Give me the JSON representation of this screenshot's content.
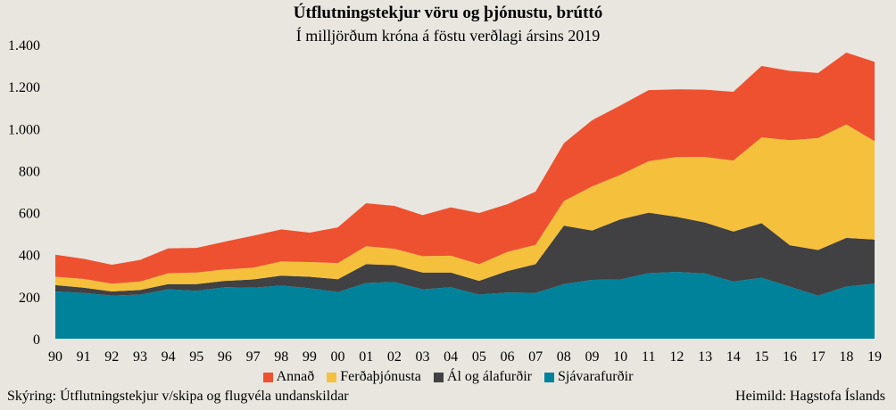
{
  "chart_data": {
    "type": "area",
    "stacked": true,
    "title": "Útflutningstekjur vöru og þjónustu, brúttó",
    "subtitle": "Í milljörðum króna á föstu verðlagi ársins 2019",
    "xlabel": "",
    "ylabel": "",
    "ylim": [
      0,
      1400
    ],
    "yticks": [
      0,
      200,
      400,
      600,
      800,
      1000,
      1200,
      1400
    ],
    "ytick_labels": [
      "0",
      "200",
      "400",
      "600",
      "800",
      "1.000",
      "1.200",
      "1.400"
    ],
    "categories": [
      "90",
      "91",
      "92",
      "93",
      "94",
      "95",
      "96",
      "97",
      "98",
      "99",
      "00",
      "01",
      "02",
      "03",
      "04",
      "05",
      "06",
      "07",
      "08",
      "09",
      "10",
      "11",
      "12",
      "13",
      "14",
      "15",
      "16",
      "17",
      "18",
      "19"
    ],
    "grid": false,
    "legend_position": "bottom",
    "series": [
      {
        "name": "Sjávarafurðir",
        "color": "#00829b",
        "values": [
          225,
          218,
          205,
          210,
          235,
          228,
          245,
          243,
          253,
          240,
          222,
          265,
          270,
          235,
          245,
          210,
          220,
          218,
          260,
          280,
          282,
          312,
          318,
          310,
          272,
          290,
          248,
          205,
          248,
          262
        ]
      },
      {
        "name": "Ál og álafurðir",
        "color": "#414042",
        "values": [
          30,
          25,
          20,
          22,
          25,
          32,
          30,
          39,
          47,
          55,
          61,
          90,
          80,
          80,
          70,
          65,
          102,
          137,
          278,
          235,
          286,
          288,
          262,
          243,
          238,
          260,
          197,
          217,
          232,
          210
        ]
      },
      {
        "name": "Ferðaþjónusta",
        "color": "#f5c13c",
        "values": [
          40,
          42,
          37,
          40,
          52,
          55,
          55,
          56,
          68,
          70,
          77,
          85,
          78,
          78,
          80,
          80,
          91,
          92,
          117,
          210,
          212,
          245,
          285,
          312,
          338,
          408,
          500,
          533,
          540,
          468
        ]
      },
      {
        "name": "Annað",
        "color": "#ee5130",
        "values": [
          105,
          95,
          90,
          103,
          118,
          117,
          132,
          152,
          152,
          140,
          170,
          205,
          204,
          195,
          230,
          243,
          227,
          253,
          275,
          315,
          330,
          338,
          322,
          320,
          327,
          340,
          330,
          310,
          342,
          378
        ]
      }
    ],
    "legend_order": [
      "Annað",
      "Ferðaþjónusta",
      "Ál og álafurðir",
      "Sjávarafurðir"
    ]
  },
  "footer": {
    "note": "Skýring: Útflutningstekjur  v/skipa og flugvéla  undanskildar",
    "source": "Heimild:  Hagstofa Íslands"
  }
}
